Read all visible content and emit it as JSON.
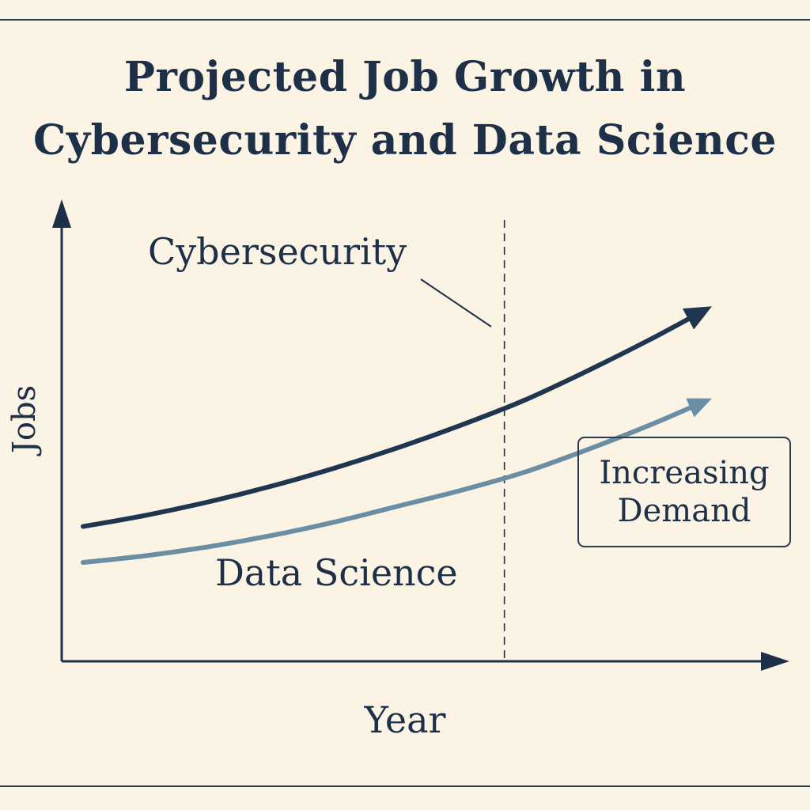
{
  "title": {
    "line1": "Projected Job Growth in",
    "line2": "Cybersecurity and Data Science"
  },
  "annotation": {
    "line1": "Increasing",
    "line2": "Demand"
  },
  "colors": {
    "background": "#fbf3e4",
    "ink": "#1d3047",
    "cybersecurity": "#1f3650",
    "data_science": "#6a8ea3"
  },
  "chart_data": {
    "type": "line",
    "title": "Projected Job Growth in Cybersecurity and Data Science",
    "xlabel": "Year",
    "ylabel": "Jobs",
    "grid": false,
    "x": [
      0,
      1,
      2,
      3,
      4,
      5,
      6,
      7,
      8,
      9,
      10
    ],
    "series": [
      {
        "name": "Cybersecurity",
        "values": [
          30,
          32.5,
          35.5,
          39,
          43,
          47.5,
          52.5,
          58,
          64.5,
          71.5,
          79
        ]
      },
      {
        "name": "Data Science",
        "values": [
          22,
          23.5,
          25.5,
          28,
          31,
          34.5,
          38,
          42,
          47,
          52.5,
          58.5
        ]
      }
    ],
    "ylim": [
      0,
      100
    ],
    "xlim": [
      0,
      11.5
    ],
    "reference_line_x": 6.7
  }
}
